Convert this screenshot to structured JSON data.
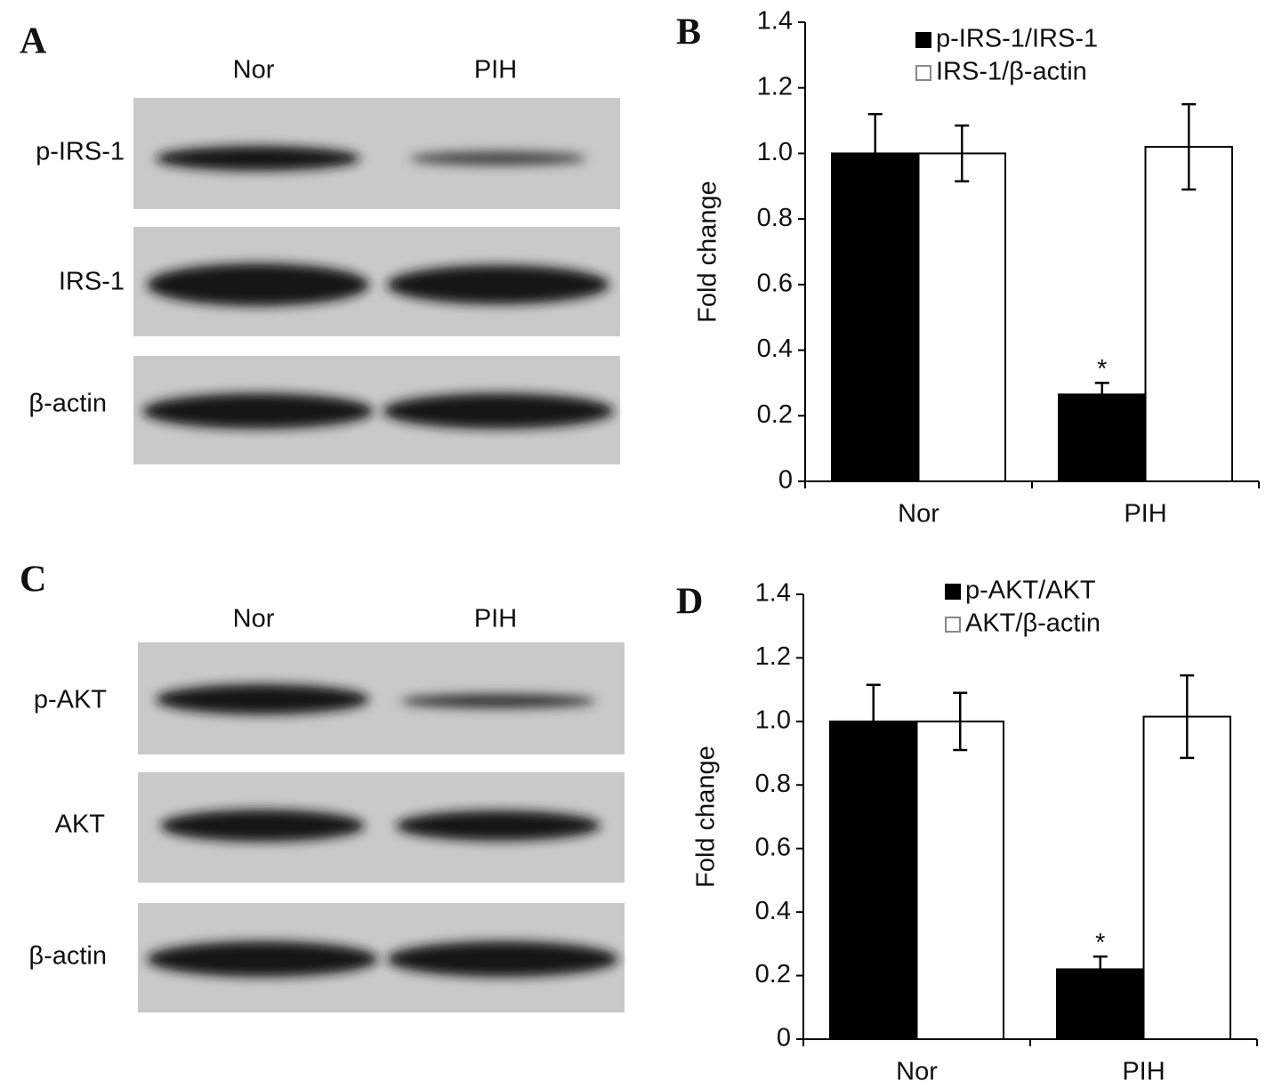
{
  "blots": [
    {
      "panel": "A",
      "lanes": [
        "Nor",
        "PIH"
      ],
      "rows": [
        "p-IRS-1",
        "IRS-1",
        "β-actin"
      ]
    },
    {
      "panel": "C",
      "lanes": [
        "Nor",
        "PIH"
      ],
      "rows": [
        "p-AKT",
        "AKT",
        "β-actin"
      ]
    }
  ],
  "chart_data": [
    {
      "type": "bar",
      "panel": "B",
      "y_label": "Fold change",
      "categories": [
        "Nor",
        "PIH"
      ],
      "series": [
        {
          "name": "p-IRS-1/IRS-1",
          "color": "#000000",
          "values": [
            1.0,
            0.265
          ],
          "errors": [
            0.12,
            0.035
          ]
        },
        {
          "name": "IRS-1/β-actin",
          "color": "#ffffff",
          "values": [
            1.0,
            1.02
          ],
          "errors": [
            0.085,
            0.13
          ]
        }
      ],
      "annotation": "*",
      "ylim": [
        0,
        1.4
      ],
      "yticks": [
        0,
        0.2,
        0.4,
        0.6,
        0.8,
        {
          "value": 1,
          "label": "1.0"
        },
        1.2,
        1.4
      ],
      "legend": "top"
    },
    {
      "type": "bar",
      "panel": "D",
      "y_label": "Fold change",
      "categories": [
        "Nor",
        "PIH"
      ],
      "series": [
        {
          "name": "p-AKT/AKT",
          "color": "#000000",
          "values": [
            1.0,
            0.22
          ],
          "errors": [
            0.115,
            0.04
          ]
        },
        {
          "name": "AKT/β-actin",
          "color": "#ffffff",
          "values": [
            1.0,
            1.015
          ],
          "errors": [
            0.09,
            0.13
          ]
        }
      ],
      "annotation": "*",
      "ylim": [
        0,
        1.4
      ],
      "yticks": [
        0,
        0.2,
        0.4,
        0.6,
        0.8,
        {
          "value": 1,
          "label": "1.0"
        },
        1.2,
        1.4
      ],
      "legend": "top"
    }
  ]
}
